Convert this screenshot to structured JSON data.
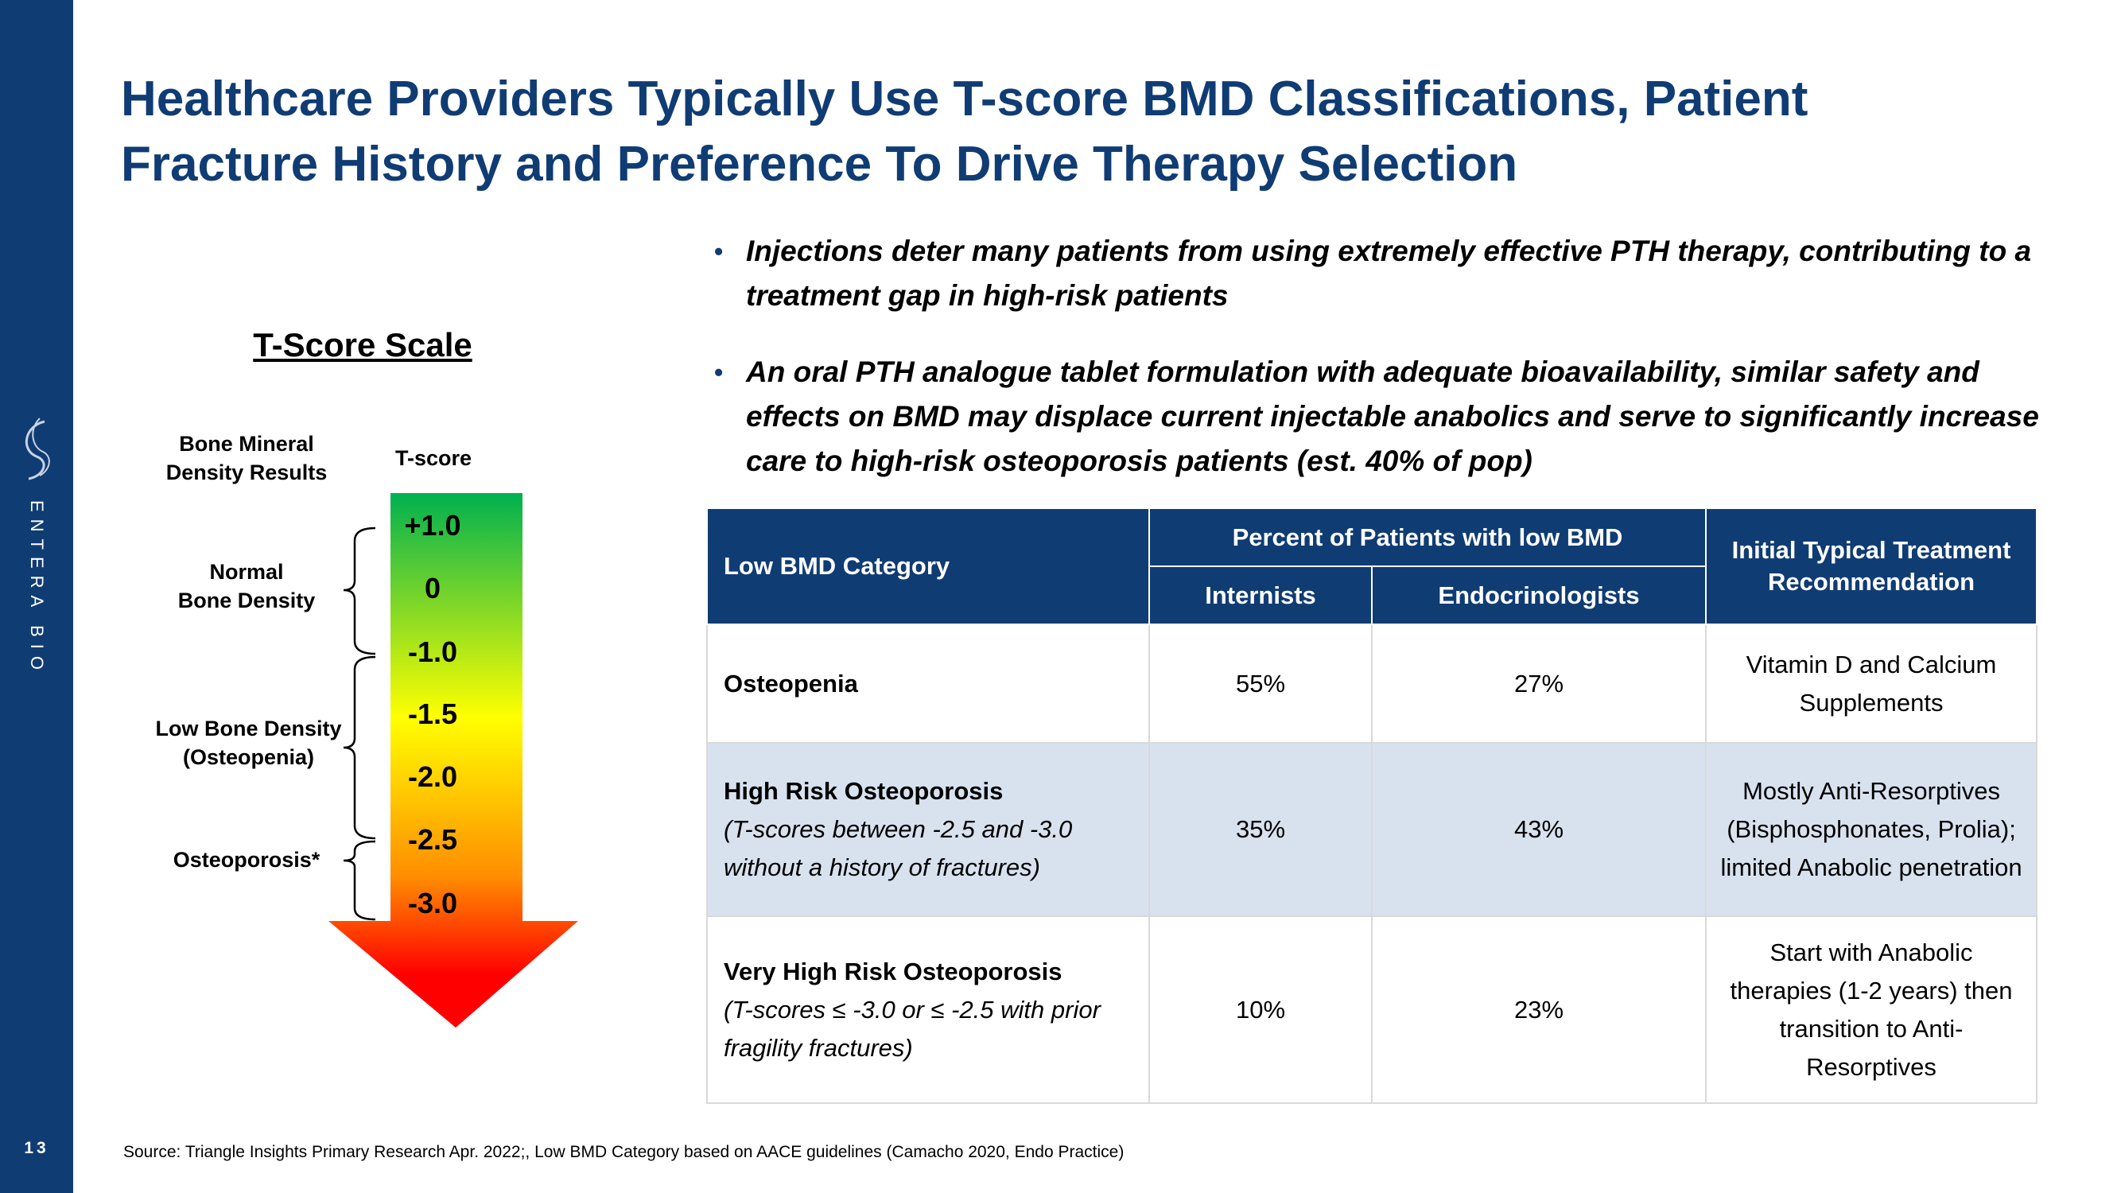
{
  "sidebar": {
    "brand_name": "ENTERA BIO",
    "page_number": "13",
    "logo_icon": "swirl-logo-icon",
    "background": "#103c74"
  },
  "title": {
    "line1": "Healthcare Providers Typically Use T-score BMD Classifications, Patient",
    "line2": "Fracture History and Preference To Drive Therapy Selection"
  },
  "scale": {
    "title": "T-Score Scale",
    "col_bmd_line1": "Bone Mineral",
    "col_bmd_line2": "Density Results",
    "col_tscore": "T-score",
    "categories": [
      {
        "line1": "Normal",
        "line2": "Bone Density"
      },
      {
        "line1": "Low Bone Density",
        "line2": "(Osteopenia)"
      },
      {
        "line1": "Osteoporosis*",
        "line2": ""
      }
    ],
    "values": [
      "+1.0",
      "0",
      "-1.0",
      "-1.5",
      "-2.0",
      "-2.5",
      "-3.0"
    ],
    "gradient_colors": [
      "#00b050",
      "#ffff00",
      "#ff0000"
    ]
  },
  "bullets": [
    "Injections deter many patients from using extremely effective PTH therapy, contributing to a treatment gap in high-risk patients",
    "An oral PTH  analogue tablet formulation with adequate bioavailability, similar safety and effects on BMD may displace current injectable anabolics and serve to significantly increase care to high-risk osteoporosis patients (est. 40% of pop)"
  ],
  "table": {
    "headers": {
      "category": "Low BMD Category",
      "percent_group": "Percent of Patients with low BMD",
      "internists": "Internists",
      "endocrinologists": "Endocrinologists",
      "recommendation": "Initial  Typical Treatment Recommendation"
    },
    "rows": [
      {
        "category": "Osteopenia",
        "note": "",
        "internists": "55%",
        "endocrinologists": "27%",
        "recommendation": "Vitamin D and Calcium Supplements"
      },
      {
        "category": "High Risk Osteoporosis",
        "note": "(T-scores between -2.5 and -3.0 without a history of fractures)",
        "internists": "35%",
        "endocrinologists": "43%",
        "recommendation": "Mostly Anti-Resorptives (Bisphosphonates, Prolia); limited Anabolic penetration"
      },
      {
        "category": "Very High Risk Osteoporosis",
        "note": "(T-scores ≤ -3.0 or ≤ -2.5 with prior fragility fractures)",
        "internists": "10%",
        "endocrinologists": "23%",
        "recommendation": "Start with Anabolic therapies (1-2 years) then transition to Anti-Resorptives"
      }
    ]
  },
  "source": "Source: Triangle Insights Primary Research  Apr. 2022;, Low BMD Category based on AACE guidelines (Camacho 2020, Endo Practice)"
}
